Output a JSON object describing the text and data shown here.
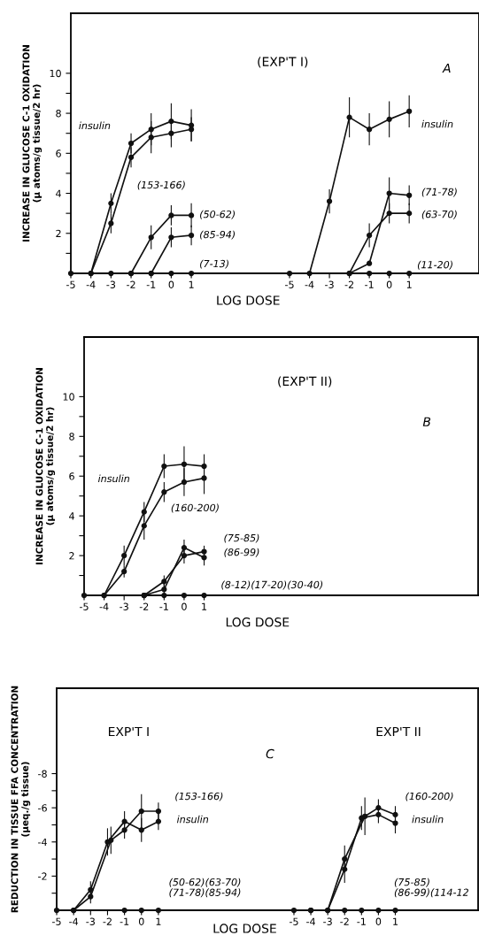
{
  "chart_data": [
    {
      "type": "line",
      "ylabel": "INCREASE IN GLUCOSE C-1 OXIDATION\n(μ atoms/g tissue/2 hr)",
      "xlabel": "LOG DOSE",
      "xlim": [
        -5,
        4.7
      ],
      "ylim": [
        0,
        13
      ],
      "xticks": [
        -5,
        -4,
        -3,
        -2,
        -1,
        0,
        1
      ],
      "yticks": [
        {
          "value": 1,
          "label": null
        },
        2,
        {
          "value": 3,
          "label": null
        },
        4,
        {
          "value": 5,
          "label": null
        },
        6,
        {
          "value": 7,
          "label": null
        },
        8,
        {
          "value": 9,
          "label": null
        },
        10
      ],
      "marker": "circle",
      "line_style": "solid",
      "grid": false,
      "series": [
        {
          "name": "insulin",
          "color": "#111111",
          "x": [
            -5,
            -4,
            -3,
            -2,
            -1,
            0,
            1
          ],
          "values": [
            0,
            0,
            3.5,
            6.5,
            7.2,
            7.6,
            7.4
          ],
          "errors": [
            null,
            null,
            0.5,
            0.5,
            0.8,
            0.9,
            0.8
          ]
        },
        {
          "name": "(153-166)",
          "color": "#111111",
          "x": [
            -4,
            -3,
            -2,
            -1,
            0,
            1
          ],
          "values": [
            0,
            2.5,
            5.8,
            6.8,
            7.0,
            7.2
          ],
          "errors": [
            null,
            0.5,
            0.5,
            0.8,
            0.7,
            0.6
          ]
        },
        {
          "name": "(50-62)",
          "color": "#111111",
          "x": [
            -2,
            -1,
            0,
            1
          ],
          "values": [
            0,
            1.8,
            2.9,
            2.9
          ],
          "errors": [
            null,
            0.6,
            0.5,
            0.6
          ]
        },
        {
          "name": "(85-94)",
          "color": "#111111",
          "x": [
            -1,
            0,
            1
          ],
          "values": [
            0,
            1.8,
            1.9
          ],
          "errors": [
            null,
            0.5,
            0.5
          ]
        },
        {
          "name": "(7-13)",
          "color": "#111111",
          "x": [
            -3,
            -2,
            -1,
            0,
            1
          ],
          "values": [
            0,
            0,
            0,
            0,
            0
          ]
        }
      ]
    },
    {
      "type": "line",
      "title": "(EXP'T I)",
      "annotations": [
        "A"
      ],
      "xlim": [
        -6.2,
        4.5
      ],
      "ylim": [
        0,
        13
      ],
      "xticks": [
        -5,
        -4,
        -3,
        -2,
        -1,
        0,
        1
      ],
      "tick_labels": "x",
      "marker": "circle",
      "line_style": "solid",
      "grid": false,
      "series": [
        {
          "name": "insulin",
          "color": "#111111",
          "x": [
            -5,
            -4,
            -3,
            -2,
            -1,
            0,
            1
          ],
          "values": [
            0,
            0,
            3.6,
            7.8,
            7.2,
            7.7,
            8.1
          ],
          "errors": [
            null,
            null,
            0.6,
            1.0,
            0.8,
            0.9,
            0.8
          ]
        },
        {
          "name": "(71-78)",
          "color": "#111111",
          "x": [
            -2,
            -1,
            0,
            1
          ],
          "values": [
            0,
            0.5,
            4.0,
            3.9
          ],
          "errors": [
            null,
            null,
            0.8,
            0.5
          ]
        },
        {
          "name": "(63-70)",
          "color": "#111111",
          "x": [
            -2,
            -1,
            0,
            1
          ],
          "values": [
            0,
            1.9,
            3.0,
            3.0
          ],
          "errors": [
            null,
            0.6,
            0.5,
            0.5
          ]
        },
        {
          "name": "(11-20)",
          "color": "#111111",
          "x": [
            -1,
            0,
            1
          ],
          "values": [
            0,
            0,
            0
          ]
        }
      ]
    },
    {
      "type": "line",
      "title": "(EXP'T II)",
      "annotations": [
        "B"
      ],
      "ylabel": "INCREASE IN GLUCOSE C-1 OXIDATION\n(μ atoms/g tissue/2 hr)",
      "xlabel": "LOG DOSE",
      "xlim": [
        -5,
        14.7
      ],
      "ylim": [
        0,
        13
      ],
      "xticks": [
        -5,
        -4,
        -3,
        -2,
        -1,
        0,
        1
      ],
      "yticks": [
        {
          "value": 1,
          "label": null
        },
        2,
        {
          "value": 3,
          "label": null
        },
        4,
        {
          "value": 5,
          "label": null
        },
        6,
        {
          "value": 7,
          "label": null
        },
        8,
        {
          "value": 9,
          "label": null
        },
        10
      ],
      "marker": "circle",
      "line_style": "solid",
      "grid": false,
      "series": [
        {
          "name": "insulin",
          "color": "#111111",
          "x": [
            -5,
            -4,
            -3,
            -2,
            -1,
            0,
            1
          ],
          "values": [
            0,
            0,
            2.0,
            4.2,
            6.5,
            6.6,
            6.5
          ],
          "errors": [
            null,
            null,
            0.5,
            0.5,
            0.6,
            0.9,
            0.6
          ]
        },
        {
          "name": "(160-200)",
          "color": "#111111",
          "x": [
            -4,
            -3,
            -2,
            -1,
            0,
            1
          ],
          "values": [
            0,
            1.2,
            3.5,
            5.2,
            5.7,
            5.9
          ],
          "errors": [
            null,
            0.3,
            0.7,
            0.5,
            0.7,
            0.8
          ]
        },
        {
          "name": "(75-85)",
          "color": "#111111",
          "x": [
            -2,
            -1,
            0,
            1
          ],
          "values": [
            0,
            0.7,
            2.0,
            2.2
          ],
          "errors": [
            null,
            0.3,
            0.4,
            0.3
          ]
        },
        {
          "name": "(86-99)",
          "color": "#111111",
          "x": [
            -2,
            -1,
            0,
            1
          ],
          "values": [
            0,
            0.3,
            2.4,
            1.9
          ],
          "errors": [
            null,
            0.3,
            0.4,
            0.4
          ]
        },
        {
          "name": "(8-12)(17-20)(30-40)",
          "color": "#111111",
          "x": [
            -2,
            -1,
            0,
            1
          ],
          "values": [
            0,
            0,
            0,
            0
          ]
        }
      ]
    },
    {
      "type": "line",
      "title": "EXP'T I",
      "annotations": [
        "C"
      ],
      "ylabel": "REDUCTION IN TISSUE FFA CONCENTRATION\n(μeq./g tissue)",
      "xlabel": "LOG DOSE",
      "xlim": [
        -5,
        6.8
      ],
      "ylim": [
        0,
        -13
      ],
      "xticks": [
        -5,
        -4,
        -3,
        -2,
        -1,
        0,
        1
      ],
      "yticks": [
        {
          "value": -1,
          "label": null
        },
        -2,
        {
          "value": -3,
          "label": null
        },
        -4,
        {
          "value": -5,
          "label": null
        },
        -6,
        {
          "value": -7,
          "label": null
        },
        -8
      ],
      "marker": "circle",
      "line_style": "solid",
      "grid": false,
      "series": [
        {
          "name": "insulin",
          "color": "#111111",
          "x": [
            -5,
            -4,
            -3,
            -2,
            -1,
            0,
            1
          ],
          "values": [
            0,
            0,
            -1.2,
            -4.0,
            -5.2,
            -4.7,
            -5.2
          ],
          "errors": [
            null,
            null,
            0.5,
            0.8,
            0.6,
            0.7,
            0.5
          ]
        },
        {
          "name": "(153-166)",
          "color": "#111111",
          "x": [
            -4,
            -3,
            -1.8,
            -1,
            0,
            1
          ],
          "values": [
            0,
            -0.8,
            -4.1,
            -4.7,
            -5.8,
            -5.8
          ],
          "errors": [
            null,
            0.4,
            0.8,
            0.5,
            1.0,
            0.5
          ]
        },
        {
          "name": "(50-62)(63-70)\n(71-78)(85-94)",
          "color": "#111111",
          "x": [
            -1,
            0,
            1
          ],
          "values": [
            0,
            0,
            0
          ]
        }
      ]
    },
    {
      "type": "line",
      "title": "EXP'T II",
      "xlim": [
        -7.2,
        5.9
      ],
      "ylim": [
        0,
        -13
      ],
      "xticks": [
        -5,
        -4,
        -3,
        -2,
        -1,
        0,
        1
      ],
      "tick_labels": "x",
      "marker": "circle",
      "line_style": "solid",
      "grid": false,
      "series": [
        {
          "name": "insulin",
          "color": "#111111",
          "x": [
            -5,
            -4,
            -3,
            -2,
            -1,
            0,
            1
          ],
          "values": [
            0,
            0,
            0,
            -2.4,
            -5.4,
            -5.6,
            -5.1
          ],
          "errors": [
            null,
            null,
            null,
            0.8,
            0.7,
            0.5,
            0.6
          ]
        },
        {
          "name": "(160-200)",
          "color": "#111111",
          "x": [
            -4,
            -3,
            -2,
            -0.8,
            0,
            1
          ],
          "values": [
            0,
            0,
            -3.0,
            -5.5,
            -6.0,
            -5.6
          ],
          "errors": [
            null,
            null,
            0.8,
            1.1,
            0.5,
            0.5
          ]
        },
        {
          "name": "(75-85)\n(86-99)(114-12",
          "color": "#111111",
          "x": [
            -2,
            -1,
            0,
            1
          ],
          "values": [
            0,
            0,
            0,
            0
          ]
        }
      ]
    }
  ]
}
